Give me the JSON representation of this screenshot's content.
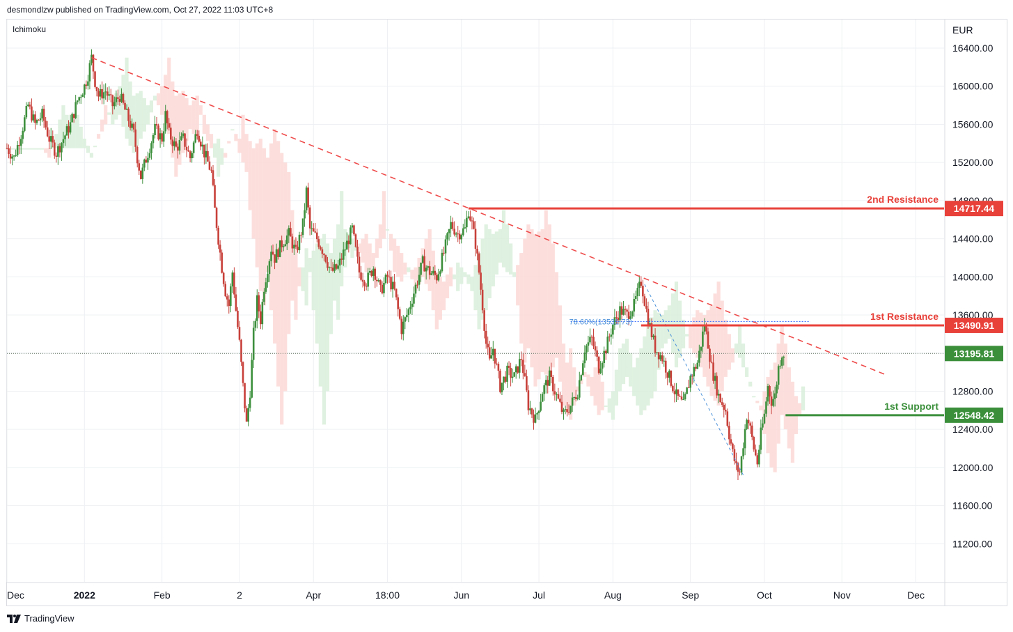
{
  "header": {
    "text": "desmondlzw published on TradingView.com, Oct 27, 2022 11:03 UTC+8"
  },
  "indicator": {
    "label": "Ichimoku"
  },
  "footer": {
    "brand": "TradingView"
  },
  "colors": {
    "up": "#26a69a",
    "down": "#ef5350",
    "candle_up": "#3c8f3c",
    "candle_down": "#c8403a",
    "resistance": "#e8413a",
    "support": "#3b8f3b",
    "trendline": "#ef4c4c",
    "fib": "#4a90d9",
    "grid": "#eef0f3",
    "cloud_bull": "#d9eedb",
    "cloud_bear": "#fbd9d7",
    "axis_text": "#131722"
  },
  "chart_data": {
    "type": "line",
    "title": "",
    "currency_label": "EUR",
    "ylim": [
      10800,
      16700
    ],
    "y_ticks": [
      16400,
      16000,
      15600,
      15200,
      14800,
      14400,
      14000,
      13600,
      13200,
      12800,
      12400,
      12000,
      11600,
      11200
    ],
    "y_tick_labels": [
      "16400.00",
      "16000.00",
      "15600.00",
      "15200.00",
      "14800.00",
      "14400.00",
      "14000.00",
      "13600.00",
      "13200.00",
      "12800.00",
      "12400.00",
      "12000.00",
      "11600.00",
      "11200.00"
    ],
    "x_ticks": [
      {
        "label": "Dec",
        "bold": false,
        "t": 0
      },
      {
        "label": "2022",
        "bold": true,
        "t": 22
      },
      {
        "label": "Feb",
        "bold": false,
        "t": 44
      },
      {
        "label": "2",
        "bold": false,
        "t": 66
      },
      {
        "label": "Apr",
        "bold": false,
        "t": 87
      },
      {
        "label": "18:00",
        "bold": false,
        "t": 108
      },
      {
        "label": "Jun",
        "bold": false,
        "t": 129
      },
      {
        "label": "Jul",
        "bold": false,
        "t": 151
      },
      {
        "label": "Aug",
        "bold": false,
        "t": 172
      },
      {
        "label": "Sep",
        "bold": false,
        "t": 194
      },
      {
        "label": "Oct",
        "bold": false,
        "t": 215
      },
      {
        "label": "Nov",
        "bold": false,
        "t": 237
      },
      {
        "label": "Dec",
        "bold": false,
        "t": 258
      }
    ],
    "price_series": [
      [
        0,
        15350
      ],
      [
        2,
        15250
      ],
      [
        4,
        15500
      ],
      [
        6,
        15800
      ],
      [
        8,
        15600
      ],
      [
        10,
        15700
      ],
      [
        12,
        15450
      ],
      [
        14,
        15300
      ],
      [
        16,
        15450
      ],
      [
        18,
        15600
      ],
      [
        20,
        15850
      ],
      [
        22,
        16000
      ],
      [
        23,
        16120
      ],
      [
        24,
        16300
      ],
      [
        25,
        16050
      ],
      [
        26,
        15900
      ],
      [
        28,
        15950
      ],
      [
        30,
        15800
      ],
      [
        32,
        15900
      ],
      [
        34,
        15700
      ],
      [
        36,
        15500
      ],
      [
        37,
        15250
      ],
      [
        38,
        15050
      ],
      [
        40,
        15300
      ],
      [
        42,
        15550
      ],
      [
        44,
        15450
      ],
      [
        45,
        15700
      ],
      [
        46,
        15500
      ],
      [
        48,
        15350
      ],
      [
        50,
        15450
      ],
      [
        52,
        15250
      ],
      [
        54,
        15550
      ],
      [
        56,
        15300
      ],
      [
        58,
        15100
      ],
      [
        59,
        14700
      ],
      [
        60,
        14400
      ],
      [
        61,
        14100
      ],
      [
        62,
        13850
      ],
      [
        63,
        13700
      ],
      [
        64,
        14050
      ],
      [
        65,
        13650
      ],
      [
        66,
        13300
      ],
      [
        67,
        12850
      ],
      [
        68,
        12450
      ],
      [
        69,
        12800
      ],
      [
        70,
        13400
      ],
      [
        71,
        13750
      ],
      [
        72,
        13550
      ],
      [
        73,
        13900
      ],
      [
        74,
        14100
      ],
      [
        75,
        14300
      ],
      [
        76,
        14200
      ],
      [
        78,
        14350
      ],
      [
        80,
        14450
      ],
      [
        82,
        14250
      ],
      [
        84,
        14550
      ],
      [
        85,
        14900
      ],
      [
        86,
        14500
      ],
      [
        88,
        14400
      ],
      [
        90,
        14250
      ],
      [
        92,
        14050
      ],
      [
        94,
        14100
      ],
      [
        96,
        14300
      ],
      [
        98,
        14500
      ],
      [
        100,
        14050
      ],
      [
        102,
        13950
      ],
      [
        104,
        14100
      ],
      [
        106,
        13850
      ],
      [
        108,
        14000
      ],
      [
        110,
        13850
      ],
      [
        112,
        13450
      ],
      [
        114,
        13650
      ],
      [
        116,
        13900
      ],
      [
        118,
        14150
      ],
      [
        120,
        14050
      ],
      [
        122,
        14000
      ],
      [
        124,
        14250
      ],
      [
        126,
        14550
      ],
      [
        128,
        14450
      ],
      [
        130,
        14500
      ],
      [
        131,
        14700
      ],
      [
        132,
        14550
      ],
      [
        133,
        14350
      ],
      [
        134,
        14050
      ],
      [
        135,
        13700
      ],
      [
        136,
        13300
      ],
      [
        137,
        13100
      ],
      [
        138,
        13250
      ],
      [
        140,
        12850
      ],
      [
        142,
        13000
      ],
      [
        144,
        12950
      ],
      [
        146,
        13150
      ],
      [
        148,
        12650
      ],
      [
        150,
        12500
      ],
      [
        152,
        12800
      ],
      [
        154,
        12950
      ],
      [
        156,
        12750
      ],
      [
        158,
        12550
      ],
      [
        160,
        12650
      ],
      [
        162,
        12800
      ],
      [
        164,
        13250
      ],
      [
        166,
        13350
      ],
      [
        168,
        13050
      ],
      [
        170,
        13250
      ],
      [
        172,
        13500
      ],
      [
        174,
        13650
      ],
      [
        176,
        13600
      ],
      [
        178,
        13700
      ],
      [
        180,
        13950
      ],
      [
        182,
        13550
      ],
      [
        184,
        13250
      ],
      [
        186,
        13150
      ],
      [
        188,
        12950
      ],
      [
        190,
        12750
      ],
      [
        192,
        12650
      ],
      [
        194,
        12950
      ],
      [
        196,
        13100
      ],
      [
        198,
        13500
      ],
      [
        199,
        13300
      ],
      [
        200,
        13050
      ],
      [
        202,
        12750
      ],
      [
        204,
        12600
      ],
      [
        205,
        12350
      ],
      [
        206,
        12150
      ],
      [
        207,
        12000
      ],
      [
        208,
        11950
      ],
      [
        209,
        12250
      ],
      [
        210,
        12550
      ],
      [
        211,
        12400
      ],
      [
        212,
        12200
      ],
      [
        213,
        12050
      ],
      [
        214,
        12350
      ],
      [
        215,
        12550
      ],
      [
        216,
        12850
      ],
      [
        217,
        12700
      ],
      [
        218,
        12750
      ],
      [
        219,
        13050
      ],
      [
        220,
        13200
      ]
    ],
    "levels": [
      {
        "name": "2nd Resistance",
        "value": "14717.44",
        "price": 14717.44,
        "t_from": 131,
        "color_key": "resistance"
      },
      {
        "name": "1st Resistance",
        "value": "13490.91",
        "price": 13490.91,
        "t_from": 180,
        "color_key": "resistance"
      },
      {
        "name": "1st Support",
        "value": "12548.42",
        "price": 12548.42,
        "t_from": 221,
        "color_key": "support"
      }
    ],
    "current_price": {
      "value": "13195.81",
      "price": 13195.81
    },
    "trendline": {
      "from": [
        24,
        16300
      ],
      "to": [
        249,
        12980
      ]
    },
    "fibonacci": {
      "label": "78.60%(13531.73)",
      "price": 13531.73,
      "t_from": 160,
      "t_to": 228,
      "diag_from": [
        181,
        13920
      ],
      "diag_to": [
        209,
        11920
      ]
    }
  }
}
